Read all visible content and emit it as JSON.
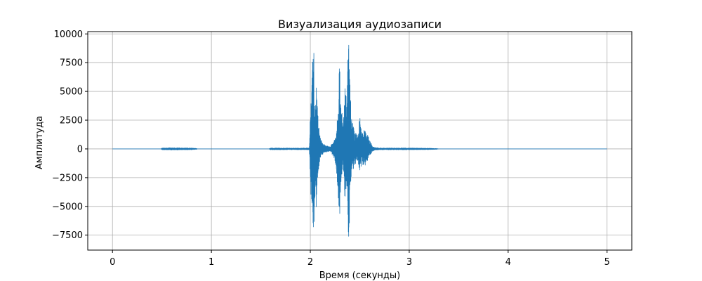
{
  "chart_data": {
    "type": "line",
    "title": "Визуализация аудиозаписи",
    "xlabel": "Время (секунды)",
    "ylabel": "Амплитуда",
    "xlim": [
      -0.25,
      5.25
    ],
    "ylim": [
      -8800,
      10200
    ],
    "xticks": [
      0,
      1,
      2,
      3,
      4,
      5
    ],
    "xtick_labels": [
      "0",
      "1",
      "2",
      "3",
      "4",
      "5"
    ],
    "yticks": [
      -7500,
      -5000,
      -2500,
      0,
      2500,
      5000,
      7500,
      10000
    ],
    "ytick_labels": [
      "−7500",
      "−5000",
      "−2500",
      "0",
      "2500",
      "5000",
      "7500",
      "10000"
    ],
    "grid": true,
    "line_color": "#1f77b4",
    "series": [
      {
        "envelope_t": [
          0,
          0.49,
          0.5,
          0.6,
          0.7,
          0.8,
          0.85,
          0.86,
          1.58,
          1.6,
          1.9,
          1.99,
          2.0,
          2.02,
          2.04,
          2.05,
          2.06,
          2.08,
          2.1,
          2.12,
          2.15,
          2.2,
          2.24,
          2.26,
          2.28,
          2.29,
          2.3,
          2.31,
          2.33,
          2.35,
          2.37,
          2.38,
          2.39,
          2.4,
          2.42,
          2.45,
          2.48,
          2.5,
          2.52,
          2.55,
          2.58,
          2.6,
          2.63,
          2.66,
          2.7,
          2.8,
          3.0,
          3.2,
          3.27,
          3.3,
          5.0
        ],
        "envelope_top": [
          0,
          0,
          80,
          100,
          90,
          80,
          40,
          0,
          0,
          80,
          70,
          90,
          3000,
          8500,
          8300,
          3500,
          6000,
          2500,
          1000,
          600,
          300,
          200,
          800,
          1500,
          4000,
          8000,
          6500,
          4500,
          2000,
          5500,
          4000,
          8500,
          9300,
          6000,
          2500,
          1500,
          1200,
          2900,
          1300,
          2000,
          1200,
          800,
          200,
          120,
          80,
          80,
          80,
          60,
          40,
          0,
          0
        ],
        "envelope_bottom": [
          0,
          0,
          -80,
          -100,
          -90,
          -80,
          -40,
          0,
          0,
          -80,
          -70,
          -90,
          -2500,
          -7300,
          -7500,
          -3000,
          -5500,
          -2000,
          -800,
          -500,
          -300,
          -200,
          -800,
          -1500,
          -4000,
          -7200,
          -5500,
          -3500,
          -1500,
          -4500,
          -3500,
          -7200,
          -8000,
          -5000,
          -2000,
          -1500,
          -1200,
          -2000,
          -1300,
          -1500,
          -1000,
          -600,
          -200,
          -120,
          -80,
          -80,
          -80,
          -60,
          -40,
          0,
          0
        ]
      }
    ]
  }
}
